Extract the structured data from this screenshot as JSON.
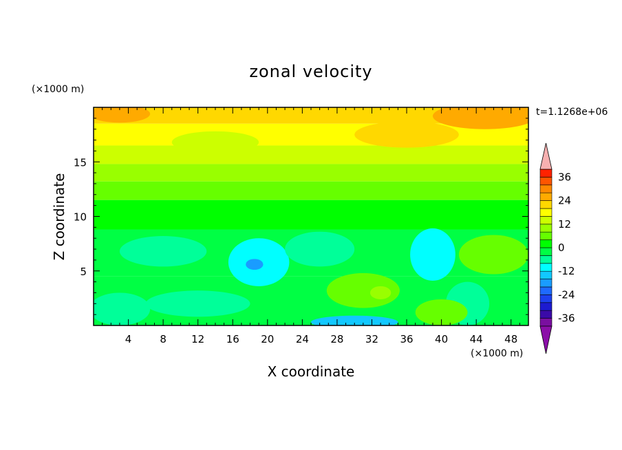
{
  "chart_data": {
    "type": "heatmap",
    "title": "zonal velocity",
    "xlabel": "X coordinate",
    "ylabel": "Z coordinate",
    "x_unit": "(×1000 m)",
    "y_unit": "(×1000 m)",
    "time_label": "t=1.1268e+06",
    "xlim": [
      0,
      50
    ],
    "ylim": [
      0,
      20
    ],
    "x_ticks": [
      4,
      8,
      12,
      16,
      20,
      24,
      28,
      32,
      36,
      40,
      44,
      48
    ],
    "y_ticks": [
      5,
      10,
      15
    ],
    "colorbar": {
      "levels": [
        -40,
        -36,
        -32,
        -28,
        -24,
        -20,
        -16,
        -12,
        -8,
        -4,
        0,
        4,
        8,
        12,
        16,
        20,
        24,
        28,
        32,
        36,
        40
      ],
      "colors": [
        "#7a0fa0",
        "#3a0aa8",
        "#1d1bd0",
        "#1c40ee",
        "#1e6aff",
        "#1a9cff",
        "#12c8ff",
        "#00ffff",
        "#00ff99",
        "#00ff44",
        "#00ff00",
        "#66ff00",
        "#99ff00",
        "#ccff00",
        "#ffff00",
        "#ffd800",
        "#ffaa00",
        "#ff8800",
        "#ff5500",
        "#ff2200"
      ],
      "tick_labels": [
        "36",
        "24",
        "12",
        "0",
        "-12",
        "-24",
        "-36"
      ],
      "tick_values": [
        36,
        24,
        12,
        0,
        -12,
        -24,
        -36
      ],
      "under_color": "#8b0fa8",
      "over_color": "#f7b0b0"
    },
    "bands": [
      {
        "z_top": 20,
        "z_bottom": 18.5,
        "value": 22
      },
      {
        "z_top": 18.5,
        "z_bottom": 16.5,
        "value": 17
      },
      {
        "z_top": 16.5,
        "z_bottom": 14.8,
        "value": 13
      },
      {
        "z_top": 14.8,
        "z_bottom": 13.2,
        "value": 9
      },
      {
        "z_top": 13.2,
        "z_bottom": 11.5,
        "value": 5
      },
      {
        "z_top": 11.5,
        "z_bottom": 8.8,
        "value": 1
      },
      {
        "z_top": 8.8,
        "z_bottom": 4.5,
        "value": -3
      },
      {
        "z_top": 4.5,
        "z_bottom": 0,
        "value": -1
      }
    ],
    "features": [
      {
        "cx": 19,
        "cz": 5.8,
        "rx": 3.5,
        "rz": 2.2,
        "value": -9
      },
      {
        "cx": 18.5,
        "cz": 5.6,
        "rx": 1.0,
        "rz": 0.5,
        "value": -17
      },
      {
        "cx": 39,
        "cz": 6.5,
        "rx": 2.6,
        "rz": 2.4,
        "value": -9
      },
      {
        "cx": 31,
        "cz": 3.2,
        "rx": 4.2,
        "rz": 1.6,
        "value": 6
      },
      {
        "cx": 33,
        "cz": 3.0,
        "rx": 1.2,
        "rz": 0.6,
        "value": 10
      },
      {
        "cx": 46,
        "cz": 6.5,
        "rx": 4.0,
        "rz": 1.8,
        "value": 5
      },
      {
        "cx": 43,
        "cz": 2.0,
        "rx": 2.5,
        "rz": 2.0,
        "value": -7
      },
      {
        "cx": 30,
        "cz": 0.3,
        "rx": 5.0,
        "rz": 0.6,
        "value": -13
      },
      {
        "cx": 40,
        "cz": 1.2,
        "rx": 3.0,
        "rz": 1.2,
        "value": 5
      },
      {
        "cx": 12,
        "cz": 2.0,
        "rx": 6.0,
        "rz": 1.2,
        "value": -6
      },
      {
        "cx": 3,
        "cz": 1.5,
        "rx": 3.5,
        "rz": 1.5,
        "value": -8
      },
      {
        "cx": 8,
        "cz": 6.8,
        "rx": 5.0,
        "rz": 1.4,
        "value": -5
      },
      {
        "cx": 26,
        "cz": 7.0,
        "rx": 4.0,
        "rz": 1.6,
        "value": -5
      },
      {
        "cx": 45,
        "cz": 19.2,
        "rx": 6.0,
        "rz": 1.2,
        "value": 25
      },
      {
        "cx": 3,
        "cz": 19.4,
        "rx": 3.5,
        "rz": 0.8,
        "value": 24
      },
      {
        "cx": 14,
        "cz": 16.8,
        "rx": 5.0,
        "rz": 1.0,
        "value": 12
      },
      {
        "cx": 36,
        "cz": 17.5,
        "rx": 6.0,
        "rz": 1.2,
        "value": 20
      }
    ]
  }
}
